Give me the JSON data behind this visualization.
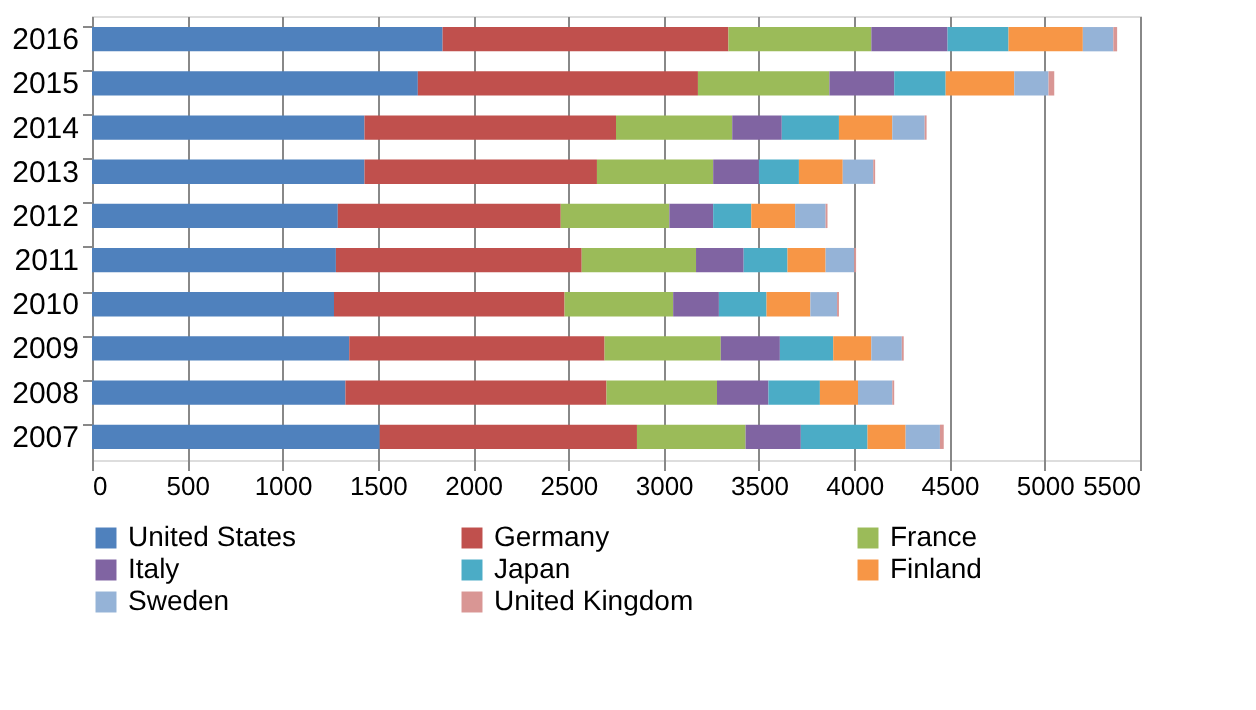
{
  "chart_data": {
    "type": "bar",
    "orientation": "horizontal",
    "stacked": true,
    "categories": [
      "2016",
      "2015",
      "2014",
      "2013",
      "2012",
      "2011",
      "2010",
      "2009",
      "2008",
      "2007"
    ],
    "series": [
      {
        "name": "United States",
        "color": "#4f81bd",
        "values": [
          1840,
          1710,
          1430,
          1430,
          1290,
          1280,
          1270,
          1350,
          1330,
          1510
        ]
      },
      {
        "name": "Germany",
        "color": "#c0504d",
        "values": [
          1500,
          1470,
          1320,
          1220,
          1170,
          1290,
          1210,
          1340,
          1370,
          1350
        ]
      },
      {
        "name": "France",
        "color": "#9bbb59",
        "values": [
          750,
          690,
          610,
          610,
          570,
          600,
          570,
          610,
          580,
          570
        ]
      },
      {
        "name": "Italy",
        "color": "#8064a2",
        "values": [
          400,
          340,
          260,
          240,
          230,
          250,
          240,
          310,
          270,
          290
        ]
      },
      {
        "name": "Japan",
        "color": "#4bacc6",
        "values": [
          320,
          270,
          300,
          210,
          200,
          230,
          250,
          280,
          270,
          350
        ]
      },
      {
        "name": "Finland",
        "color": "#f79646",
        "values": [
          390,
          360,
          280,
          230,
          230,
          200,
          230,
          200,
          200,
          200
        ]
      },
      {
        "name": "Sweden",
        "color": "#95b3d7",
        "values": [
          160,
          180,
          170,
          160,
          160,
          150,
          140,
          160,
          180,
          180
        ]
      },
      {
        "name": "United Kingdom",
        "color": "#d99694",
        "values": [
          20,
          30,
          10,
          10,
          10,
          10,
          10,
          10,
          10,
          20
        ]
      }
    ],
    "xlim": [
      0,
      5500
    ],
    "xticks": [
      0,
      500,
      1000,
      1500,
      2000,
      2500,
      3000,
      3500,
      4000,
      4500,
      5000,
      5500
    ],
    "grid": "x",
    "legend": "bottom"
  }
}
